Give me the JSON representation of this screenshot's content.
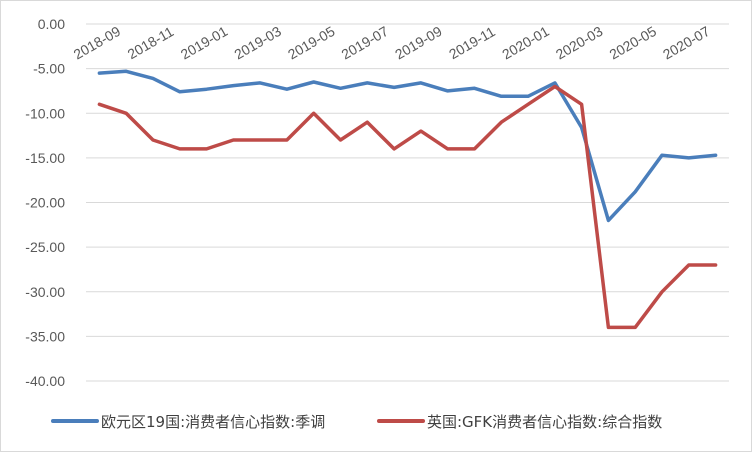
{
  "chart_data": {
    "type": "line",
    "title": "",
    "xlabel": "",
    "ylabel": "",
    "ylim": [
      -40,
      0
    ],
    "y_ticks": [
      "0.00",
      "-5.00",
      "-10.00",
      "-15.00",
      "-20.00",
      "-25.00",
      "-30.00",
      "-35.00",
      "-40.00"
    ],
    "x": [
      "2018-09",
      "2018-10",
      "2018-11",
      "2018-12",
      "2019-01",
      "2019-02",
      "2019-03",
      "2019-04",
      "2019-05",
      "2019-06",
      "2019-07",
      "2019-08",
      "2019-09",
      "2019-10",
      "2019-11",
      "2019-12",
      "2020-01",
      "2020-02",
      "2020-03",
      "2020-04",
      "2020-05",
      "2020-06",
      "2020-07",
      "2020-08"
    ],
    "x_tick_labels": [
      "2018-09",
      "",
      "2018-11",
      "",
      "2019-01",
      "",
      "2019-03",
      "",
      "2019-05",
      "",
      "2019-07",
      "",
      "2019-09",
      "",
      "2019-11",
      "",
      "2020-01",
      "",
      "2020-03",
      "",
      "2020-05",
      "",
      "2020-07",
      ""
    ],
    "grid": "horizontal",
    "legend_position": "bottom",
    "series": [
      {
        "name": "欧元区19国:消费者信心指数:季调",
        "color": "#4a7ebb",
        "values": [
          -5.5,
          -5.3,
          -6.1,
          -7.6,
          -7.3,
          -6.9,
          -6.6,
          -7.3,
          -6.5,
          -7.2,
          -6.6,
          -7.1,
          -6.6,
          -7.5,
          -7.2,
          -8.1,
          -8.1,
          -6.6,
          -11.6,
          -22.0,
          -18.8,
          -14.7,
          -15.0,
          -14.7
        ]
      },
      {
        "name": "英国:GFK消费者信心指数:综合指数",
        "color": "#be4b48",
        "values": [
          -9,
          -10,
          -13,
          -14,
          -14,
          -13,
          -13,
          -13,
          -10,
          -13,
          -11,
          -14,
          -12,
          -14,
          -14,
          -11,
          -9,
          -7,
          -9,
          -34,
          -34,
          -30,
          -27,
          -27
        ]
      }
    ]
  }
}
